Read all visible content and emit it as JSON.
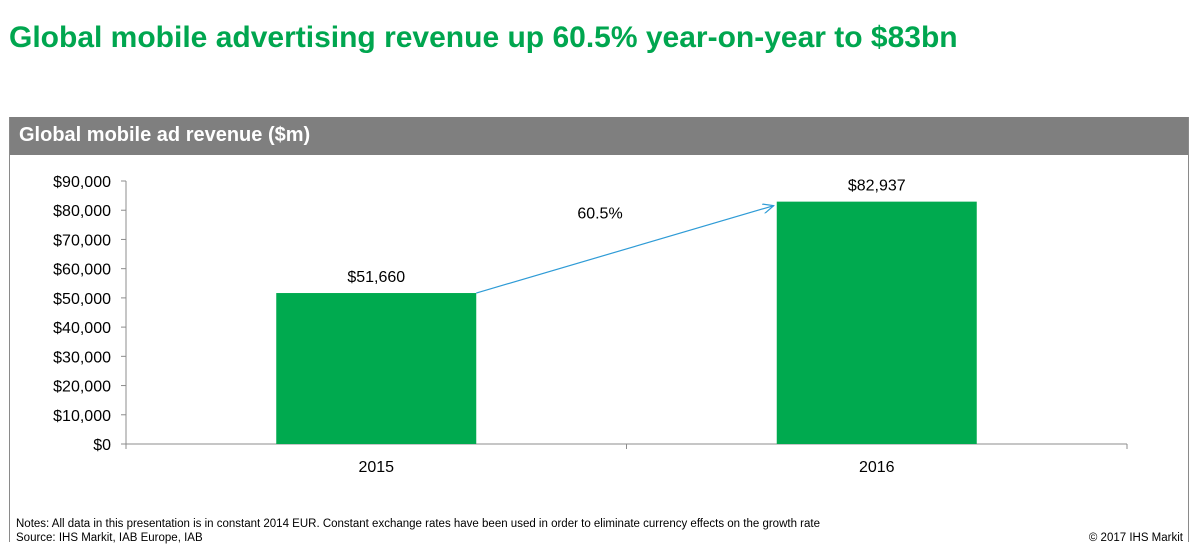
{
  "page": {
    "headline": "Global mobile advertising revenue up 60.5% year-on-year to $83bn",
    "headline_color": "#00a64f",
    "notes": "Notes: All data in this presentation is in constant 2014 EUR. Constant exchange rates have been used in order to eliminate currency effects on the growth rate",
    "source": "Source: IHS Markit, IAB Europe, IAB",
    "copyright": "© 2017 IHS Markit"
  },
  "chart_data": {
    "type": "bar",
    "title": "Global mobile ad revenue ($m)",
    "categories": [
      "2015",
      "2016"
    ],
    "values": [
      51660,
      82937
    ],
    "data_labels": [
      "$51,660",
      "$82,937"
    ],
    "ylim": [
      0,
      90000
    ],
    "y_ticks": [
      "$0",
      "$10,000",
      "$20,000",
      "$30,000",
      "$40,000",
      "$50,000",
      "$60,000",
      "$70,000",
      "$80,000",
      "$90,000"
    ],
    "xlabel": "",
    "ylabel": "",
    "grid": false,
    "legend": "none",
    "bar_color": "#00aa4f",
    "annotation": {
      "text": "60.5%",
      "type": "arrow",
      "from_category": "2015",
      "to_category": "2016",
      "color": "#2e9bd6"
    }
  }
}
